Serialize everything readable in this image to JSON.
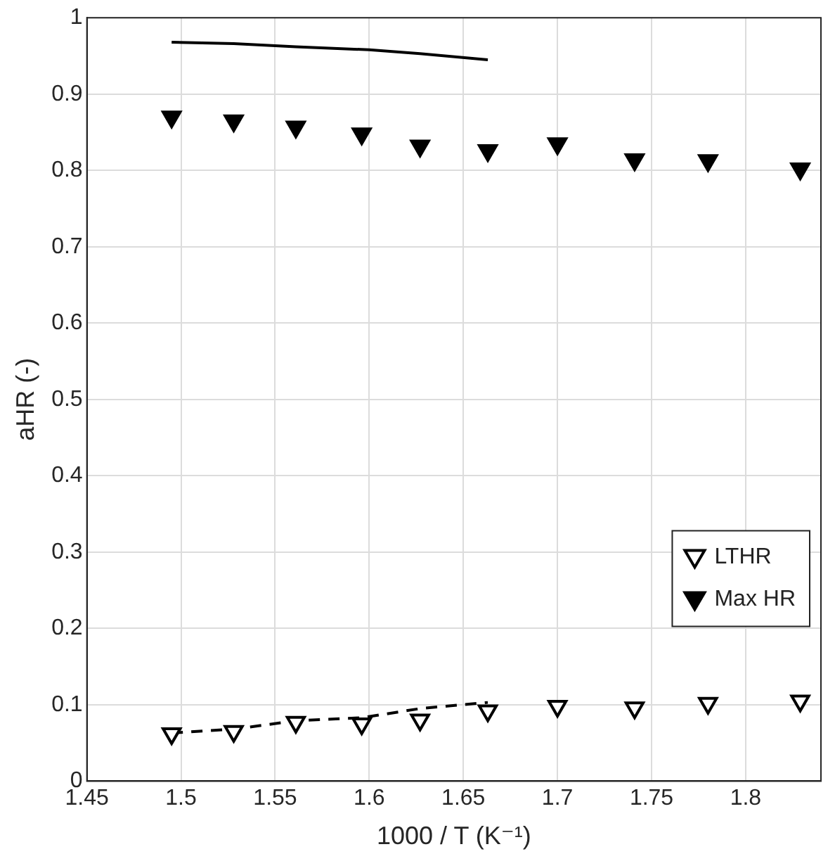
{
  "chart_data": {
    "type": "scatter",
    "xlabel": "1000 / T (K⁻¹)",
    "ylabel": "aHR (-)",
    "xlim": [
      1.45,
      1.84
    ],
    "xticks": [
      1.45,
      1.5,
      1.55,
      1.6,
      1.65,
      1.7,
      1.75,
      1.8
    ],
    "ylim": [
      0,
      1
    ],
    "yticks": [
      0,
      0.1,
      0.2,
      0.3,
      0.4,
      0.5,
      0.6,
      0.7,
      0.8,
      0.9,
      1
    ],
    "grid": true,
    "legend": "bottom right",
    "marker": "triangle",
    "series": [
      {
        "name": "LTHR",
        "color": "#000000",
        "x": [
          1.495,
          1.528,
          1.561,
          1.596,
          1.627,
          1.663,
          1.7,
          1.741,
          1.78,
          1.829
        ],
        "values": [
          0.062,
          0.065,
          0.077,
          0.075,
          0.08,
          0.092,
          0.098,
          0.096,
          0.102,
          0.105
        ]
      },
      {
        "name": "Max HR",
        "color": "#000000",
        "x": [
          1.495,
          1.528,
          1.561,
          1.596,
          1.627,
          1.663,
          1.7,
          1.741,
          1.78,
          1.829
        ],
        "values": [
          0.87,
          0.865,
          0.857,
          0.848,
          0.832,
          0.826,
          0.835,
          0.814,
          0.813,
          0.802
        ]
      },
      {
        "type": "line",
        "color": "#000000",
        "line_style": "solid",
        "marker": "none",
        "x": [
          1.495,
          1.528,
          1.561,
          1.6,
          1.627,
          1.663
        ],
        "values": [
          0.968,
          0.966,
          0.962,
          0.958,
          0.953,
          0.945
        ]
      },
      {
        "type": "line",
        "color": "#000000",
        "line_style": "dashed",
        "marker": "none",
        "x": [
          1.495,
          1.528,
          1.561,
          1.596,
          1.627,
          1.663
        ],
        "values": [
          0.063,
          0.068,
          0.079,
          0.083,
          0.095,
          0.103
        ]
      }
    ]
  }
}
